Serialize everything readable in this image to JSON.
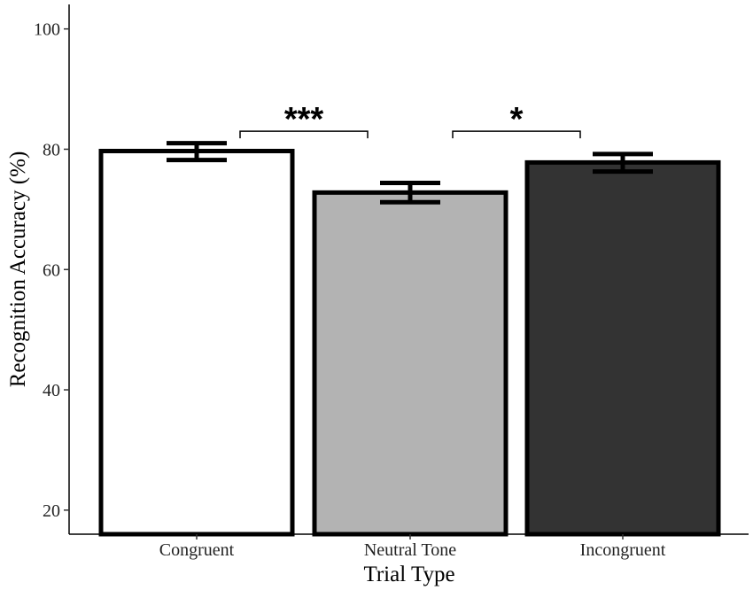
{
  "chart_data": {
    "type": "bar",
    "categories": [
      "Congruent",
      "Neutral Tone",
      "Incongruent"
    ],
    "values": [
      79.7,
      72.8,
      77.8
    ],
    "error_bars": [
      {
        "low": 78.2,
        "high": 81.0
      },
      {
        "low": 71.2,
        "high": 74.4
      },
      {
        "low": 76.3,
        "high": 79.2
      }
    ],
    "colors": [
      "#ffffff",
      "#b3b3b3",
      "#333333"
    ],
    "edge_color": "#000000",
    "xlabel": "Trial Type",
    "ylabel": "Recognition Accuracy (%)",
    "ylim": [
      16,
      104
    ],
    "yticks": [
      20,
      40,
      60,
      80,
      100
    ],
    "grid": false,
    "annotations": [
      {
        "label": "***",
        "from": 0,
        "to": 1,
        "y": 83.0
      },
      {
        "label": "*",
        "from": 1,
        "to": 2,
        "y": 83.0
      }
    ]
  }
}
